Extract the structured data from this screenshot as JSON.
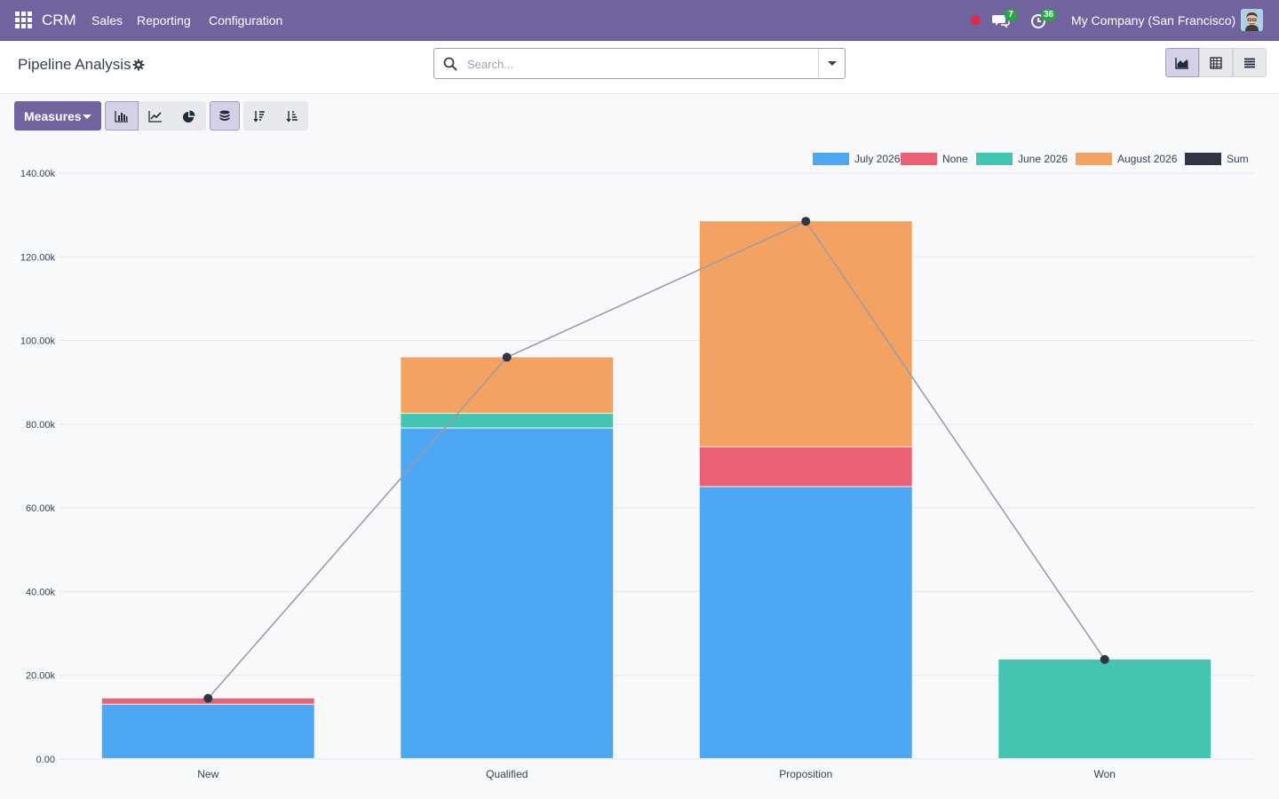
{
  "navbar": {
    "app_name": "CRM",
    "menu": [
      "Sales",
      "Reporting",
      "Configuration"
    ],
    "messages_count": "7",
    "activities_count": "36",
    "company": "My Company (San Francisco)"
  },
  "control_panel": {
    "title": "Pipeline Analysis",
    "search_placeholder": "Search..."
  },
  "toolbar": {
    "measures_label": "Measures"
  },
  "colors": {
    "accent": "#71639e",
    "july": "#4ea7f2",
    "none": "#ea6175",
    "june": "#43c5b1",
    "august": "#f4a261",
    "sum": "#2f3542"
  },
  "chart_data": {
    "type": "bar",
    "stacked": true,
    "categories": [
      "New",
      "Qualified",
      "Proposition",
      "Won"
    ],
    "series": [
      {
        "name": "July 2026",
        "color": "#4ea7f2",
        "values": [
          13000,
          79000,
          65000,
          0
        ]
      },
      {
        "name": "None",
        "color": "#ea6175",
        "values": [
          1500,
          0,
          9500,
          0
        ]
      },
      {
        "name": "June 2026",
        "color": "#43c5b1",
        "values": [
          0,
          3500,
          0,
          23800
        ]
      },
      {
        "name": "August 2026",
        "color": "#f4a261",
        "values": [
          0,
          13500,
          54000,
          0
        ]
      }
    ],
    "line_series": {
      "name": "Sum",
      "color": "#2f3542",
      "values": [
        14500,
        96000,
        128500,
        23800
      ]
    },
    "y_ticks": [
      "0.00",
      "20.00k",
      "40.00k",
      "60.00k",
      "80.00k",
      "100.00k",
      "120.00k",
      "140.00k"
    ],
    "ylim": [
      0,
      140000
    ],
    "grid": true,
    "legend_position": "top-right"
  }
}
